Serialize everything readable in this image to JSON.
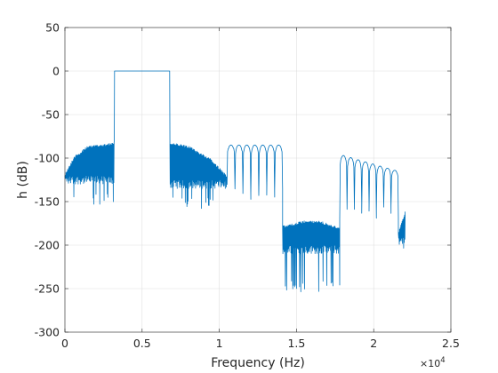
{
  "chart_data": {
    "type": "line",
    "title": "",
    "xlabel": "Frequency (Hz)",
    "ylabel": "h (dB)",
    "x_exponent_label": "×10",
    "x_exponent_power": "4",
    "xlim": [
      0,
      25000
    ],
    "ylim": [
      -300,
      50
    ],
    "grid": true,
    "x_ticks": [
      0,
      5000,
      10000,
      15000,
      20000,
      25000
    ],
    "x_tick_labels": [
      "0",
      "0.5",
      "1",
      "1.5",
      "2",
      "2.5"
    ],
    "y_ticks": [
      50,
      0,
      -50,
      -100,
      -150,
      -200,
      -250,
      -300
    ],
    "y_tick_labels": [
      "50",
      "0",
      "-50",
      "-100",
      "-150",
      "-200",
      "-250",
      "-300"
    ],
    "series_color": "#0072BD",
    "series": [
      {
        "name": "",
        "segments": [
          {
            "kind": "sidelobe",
            "x": [
              0,
              3200
            ],
            "envelope": [
              [
                0,
                -118
              ],
              [
                600,
                -98
              ],
              [
                1500,
                -86
              ],
              [
                3200,
                -82
              ]
            ],
            "floor": -130,
            "dip_min": -155,
            "period": 35
          },
          {
            "kind": "passband",
            "x": [
              3200,
              6800
            ],
            "level": 0
          },
          {
            "kind": "sidelobe",
            "x": [
              6800,
              10500
            ],
            "envelope": [
              [
                6800,
                -82
              ],
              [
                8000,
                -86
              ],
              [
                9400,
                -100
              ],
              [
                10500,
                -120
              ]
            ],
            "floor": -135,
            "dip_min": -160,
            "period": 35
          },
          {
            "kind": "lobes",
            "x": [
              10500,
              14100
            ],
            "peaks": -85,
            "dip_min": -150,
            "count": 7
          },
          {
            "kind": "sidelobe",
            "x": [
              14100,
              17800
            ],
            "envelope": [
              [
                14100,
                -178
              ],
              [
                15500,
                -172
              ],
              [
                16500,
                -172
              ],
              [
                17800,
                -180
              ]
            ],
            "floor": -210,
            "dip_min": -255,
            "period": 40
          },
          {
            "kind": "lobes",
            "x": [
              17800,
              21600
            ],
            "peaks_start": -97,
            "peaks_end": -114,
            "dip_min": -170,
            "count": 8
          },
          {
            "kind": "sidelobe",
            "x": [
              21600,
              22050
            ],
            "envelope": [
              [
                21600,
                -185
              ],
              [
                22050,
                -160
              ]
            ],
            "floor": -200,
            "dip_min": -212,
            "period": 40
          }
        ]
      }
    ]
  }
}
